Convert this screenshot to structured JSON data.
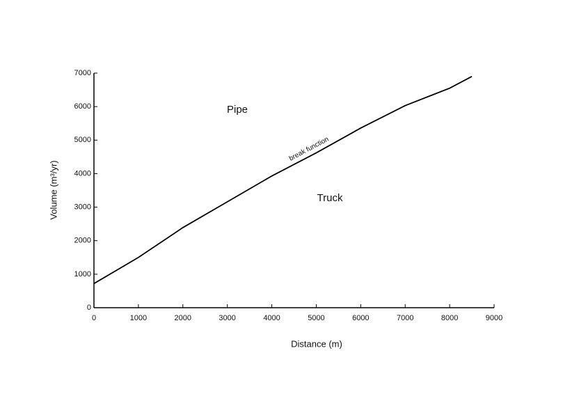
{
  "chart_data": {
    "type": "line",
    "x_label": "Distance (m)",
    "y_label": "Volume (m³/yr)",
    "x": [
      0,
      1000,
      2000,
      3000,
      4000,
      5000,
      6000,
      7000,
      8000,
      8500
    ],
    "series": [
      {
        "name": "break function",
        "color": "#000000",
        "values": [
          720,
          1500,
          2390,
          3160,
          3930,
          4620,
          5360,
          6030,
          6550,
          6900
        ]
      }
    ],
    "xlim": [
      0,
      9000
    ],
    "xticks": [
      0,
      1000,
      2000,
      3000,
      4000,
      5000,
      6000,
      7000,
      8000,
      9000
    ],
    "ylim": [
      0,
      7000
    ],
    "yticks": [
      0,
      1000,
      2000,
      3000,
      4000,
      5000,
      6000,
      7000
    ],
    "annotations": [
      "Pipe",
      "Truck"
    ]
  }
}
